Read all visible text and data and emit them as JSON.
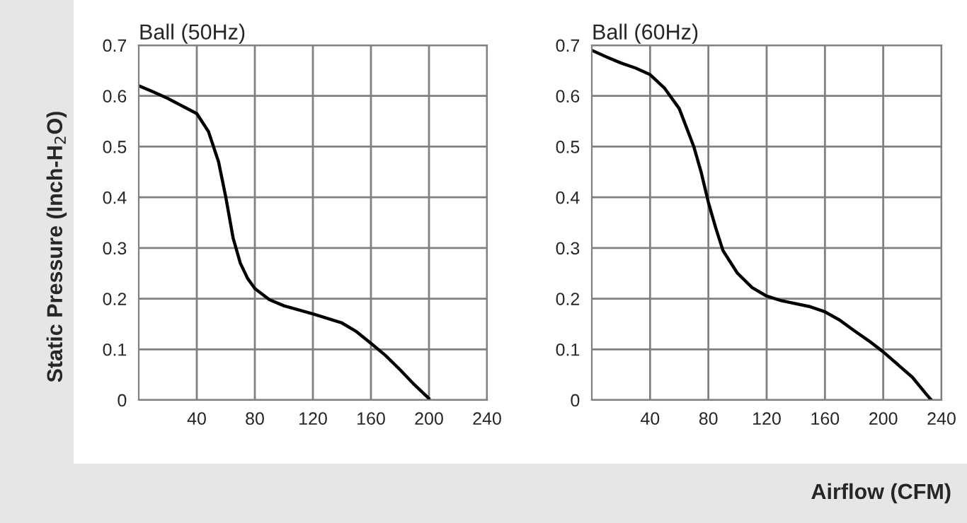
{
  "chart_data": [
    {
      "type": "line",
      "title": "Ball (50Hz)",
      "ylabel": "Static Pressure (Inch-H$_{2}$O)",
      "series": [
        {
          "color": "#000000",
          "x": [
            0,
            10,
            20,
            30,
            40,
            48,
            55,
            60,
            65,
            70,
            75,
            80,
            90,
            100,
            120,
            140,
            150,
            160,
            170,
            180,
            190,
            200
          ],
          "values": [
            0.62,
            0.608,
            0.595,
            0.58,
            0.565,
            0.53,
            0.47,
            0.4,
            0.32,
            0.27,
            0.24,
            0.22,
            0.198,
            0.186,
            0.17,
            0.152,
            0.135,
            0.112,
            0.088,
            0.06,
            0.03,
            0.003
          ]
        }
      ],
      "xlim": [
        0,
        240
      ],
      "xticks": [
        40,
        80,
        120,
        160,
        200,
        240
      ],
      "ylim": [
        0,
        0.7
      ],
      "yticks": [
        0,
        0.1,
        0.2,
        0.3,
        0.4,
        0.5,
        0.6,
        0.7
      ],
      "grid": true
    },
    {
      "type": "line",
      "title": "Ball (60Hz)",
      "xlabel": "Airflow (CFM)",
      "series": [
        {
          "color": "#000000",
          "x": [
            0,
            10,
            20,
            30,
            40,
            50,
            60,
            70,
            75,
            80,
            85,
            90,
            100,
            110,
            120,
            130,
            150,
            160,
            170,
            180,
            190,
            200,
            210,
            220,
            230,
            233
          ],
          "values": [
            0.69,
            0.677,
            0.665,
            0.655,
            0.642,
            0.615,
            0.575,
            0.5,
            0.45,
            0.39,
            0.34,
            0.295,
            0.25,
            0.222,
            0.205,
            0.196,
            0.184,
            0.174,
            0.158,
            0.137,
            0.117,
            0.095,
            0.07,
            0.045,
            0.01,
            0.0
          ]
        }
      ],
      "xlim": [
        0,
        240
      ],
      "xticks": [
        40,
        80,
        120,
        160,
        200,
        240
      ],
      "ylim": [
        0,
        0.7
      ],
      "yticks": [
        0,
        0.1,
        0.2,
        0.3,
        0.4,
        0.5,
        0.6,
        0.7
      ],
      "grid": true
    }
  ]
}
